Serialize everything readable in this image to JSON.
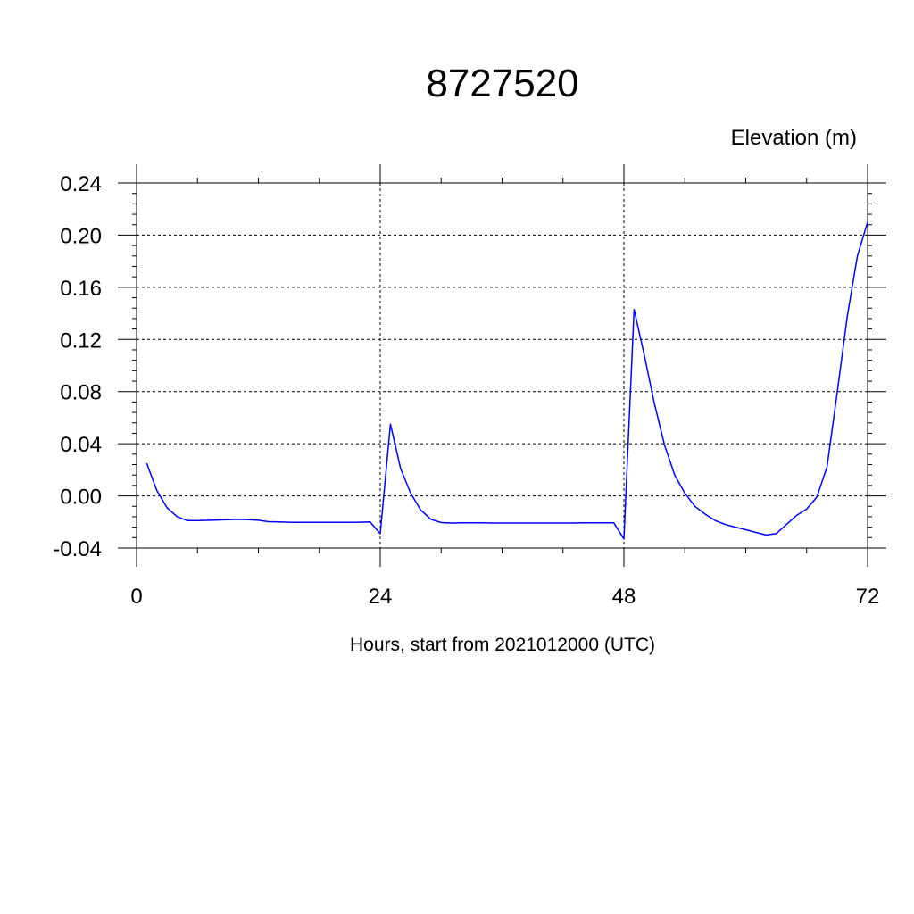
{
  "chart_data": {
    "type": "line",
    "title": "8727520",
    "ylabel": "Elevation (m)",
    "xlabel": "Hours, start from 2021012000 (UTC)",
    "xlim": [
      0,
      72
    ],
    "ylim": [
      -0.04,
      0.24
    ],
    "x_ticks": [
      0,
      24,
      48,
      72
    ],
    "x_tick_labels": [
      "0",
      "24",
      "48",
      "72"
    ],
    "y_ticks": [
      -0.04,
      0.0,
      0.04,
      0.08,
      0.12,
      0.16,
      0.2,
      0.24
    ],
    "y_tick_labels": [
      "-0.04",
      "0.00",
      "0.04",
      "0.08",
      "0.12",
      "0.16",
      "0.20",
      "0.24"
    ],
    "grid": true,
    "line_color": "#0000ff",
    "series": [
      {
        "x": [
          1,
          2,
          3,
          4,
          5,
          6,
          7,
          8,
          9,
          10,
          11,
          12,
          13,
          14,
          15,
          16,
          17,
          18,
          19,
          20,
          21,
          22,
          23,
          24,
          25,
          26,
          27,
          28,
          29,
          30,
          31,
          32,
          33,
          34,
          35,
          36,
          37,
          38,
          39,
          40,
          41,
          42,
          43,
          44,
          45,
          46,
          47,
          48,
          49,
          50,
          51,
          52,
          53,
          54,
          55,
          56,
          57,
          58,
          59,
          60,
          61,
          62,
          63,
          64,
          65,
          66,
          67,
          68,
          69,
          70,
          71,
          72
        ],
        "values": [
          0.025,
          0.004,
          -0.009,
          -0.016,
          -0.019,
          -0.019,
          -0.0188,
          -0.0185,
          -0.0182,
          -0.018,
          -0.0182,
          -0.0187,
          -0.0198,
          -0.02,
          -0.0202,
          -0.0203,
          -0.0203,
          -0.0203,
          -0.0203,
          -0.0203,
          -0.0203,
          -0.0202,
          -0.02,
          -0.029,
          0.055,
          0.021,
          0.002,
          -0.011,
          -0.018,
          -0.0205,
          -0.0208,
          -0.0207,
          -0.0207,
          -0.0207,
          -0.0208,
          -0.0208,
          -0.0208,
          -0.0208,
          -0.0208,
          -0.0208,
          -0.0208,
          -0.0208,
          -0.0208,
          -0.0207,
          -0.0207,
          -0.0207,
          -0.0206,
          -0.033,
          0.143,
          0.108,
          0.071,
          0.039,
          0.016,
          0.002,
          -0.008,
          -0.014,
          -0.019,
          -0.022,
          -0.024,
          -0.026,
          -0.028,
          -0.03,
          -0.029,
          -0.022,
          -0.015,
          -0.01,
          -0.001,
          0.022,
          0.079,
          0.138,
          0.184,
          0.21
        ]
      }
    ]
  }
}
